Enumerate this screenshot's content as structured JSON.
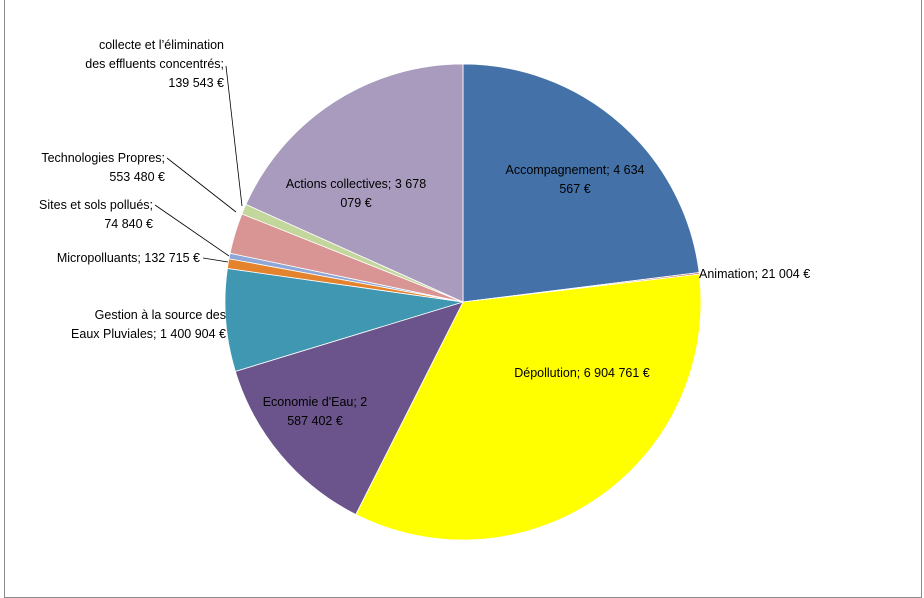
{
  "chart_data": {
    "type": "pie",
    "title": "",
    "start_angle_deg": 0,
    "direction": "clockwise",
    "slices": [
      {
        "name": "Accompagnement",
        "value": 4634567,
        "label": [
          "Accompagnement; 4 634",
          "567 €"
        ],
        "color": "#4472a8"
      },
      {
        "name": "Animation",
        "value": 21004,
        "label": [
          "Animation; 21 004 €"
        ],
        "color": "#c0504d"
      },
      {
        "name": "Dépollution",
        "value": 6904761,
        "label": [
          "Dépollution; 6 904 761 €"
        ],
        "color": "#ffff00"
      },
      {
        "name": "Economie d'Eau",
        "value": 2587402,
        "label": [
          "Economie d'Eau; 2",
          "587 402 €"
        ],
        "color": "#6b548b"
      },
      {
        "name": "Gestion à la source des Eaux Pluviales",
        "value": 1400904,
        "label": [
          "Gestion à la source des",
          "Eaux Pluviales; 1 400 904 €"
        ],
        "color": "#3f97b1"
      },
      {
        "name": "Micropolluants",
        "value": 132715,
        "label": [
          "Micropolluants; 132 715 €"
        ],
        "color": "#e5832d"
      },
      {
        "name": "Sites et sols pollués",
        "value": 74840,
        "label": [
          "Sites et sols pollués;",
          "74 840 €"
        ],
        "color": "#8ea7d7"
      },
      {
        "name": "Technologies Propres",
        "value": 553480,
        "label": [
          "Technologies Propres;",
          "553 480 €"
        ],
        "color": "#d99594"
      },
      {
        "name": "collecte et l’élimination des effluents concentrés",
        "value": 139543,
        "label": [
          "collecte et l’élimination",
          "des effluents concentrés;",
          "139 543 €"
        ],
        "color": "#c3d69b"
      },
      {
        "name": "Actions collectives",
        "value": 3678079,
        "label": [
          "Actions collectives; 3 678",
          "079 €"
        ],
        "color": "#a99bbd"
      }
    ]
  }
}
